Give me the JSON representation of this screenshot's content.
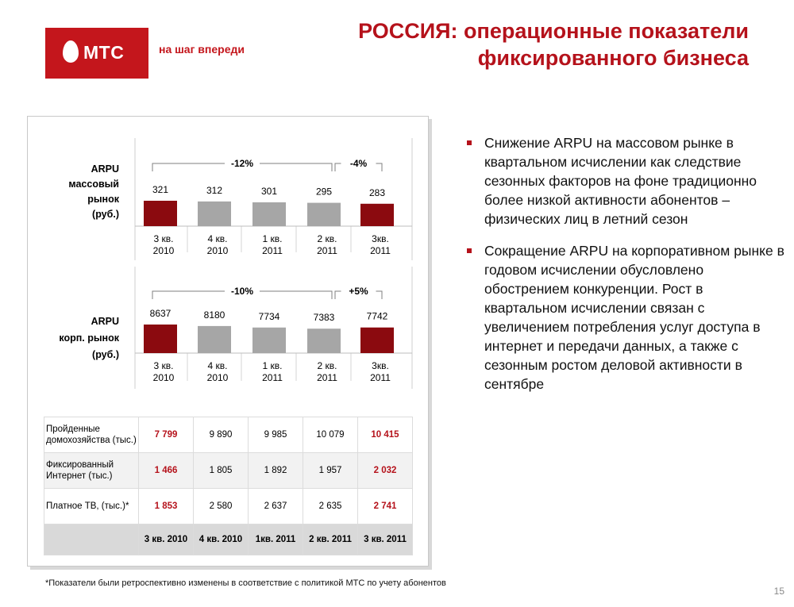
{
  "header": {
    "logo_text": "МТС",
    "tagline": "на шаг впереди",
    "title_line1": "РОССИЯ: операционные показатели",
    "title_line2": "фиксированного бизнеса"
  },
  "colors": {
    "brand": "#c4161c",
    "bar_dark": "#8b0a0f",
    "bar_gray": "#a6a6a6"
  },
  "chart_data": [
    {
      "type": "bar",
      "ylabel_lines": [
        "ARPU",
        "массовый",
        "рынок",
        "(руб.)"
      ],
      "categories": [
        [
          "3 кв.",
          "2010"
        ],
        [
          "4 кв.",
          "2010"
        ],
        [
          "1 кв.",
          "2011"
        ],
        [
          "2 кв.",
          "2011"
        ],
        [
          "3кв.",
          "2011"
        ]
      ],
      "values": [
        321,
        312,
        301,
        295,
        283
      ],
      "labels": [
        "321",
        "312",
        "301",
        "295",
        "283"
      ],
      "highlight": [
        0,
        4
      ],
      "annotations": [
        {
          "text": "-12%",
          "from": 0,
          "to": 3
        },
        {
          "text": "-4%",
          "from": 3,
          "to": 4
        }
      ]
    },
    {
      "type": "bar",
      "ylabel_lines": [
        "ARPU",
        "корп. рынок",
        "(руб.)"
      ],
      "categories": [
        [
          "3 кв.",
          "2010"
        ],
        [
          "4 кв.",
          "2010"
        ],
        [
          "1 кв.",
          "2011"
        ],
        [
          "2 кв.",
          "2011"
        ],
        [
          "3кв.",
          "2011"
        ]
      ],
      "values": [
        8637,
        8180,
        7734,
        7383,
        7742
      ],
      "labels": [
        "8637",
        "8180",
        "7734",
        "7383",
        "7742"
      ],
      "highlight": [
        0,
        4
      ],
      "annotations": [
        {
          "text": "-10%",
          "from": 0,
          "to": 3
        },
        {
          "text": "+5%",
          "from": 3,
          "to": 4
        }
      ]
    }
  ],
  "table": {
    "rows": [
      {
        "label": "Пройденные домохозяйства (тыс.)",
        "values": [
          "7 799",
          "9 890",
          "9 985",
          "10 079",
          "10 415"
        ]
      },
      {
        "label": "Фиксированный Интернет (тыс.)",
        "values": [
          "1 466",
          "1 805",
          "1 892",
          "1 957",
          "2 032"
        ]
      },
      {
        "label": "Платное ТВ, (тыс.)*",
        "values": [
          "1 853",
          "2 580",
          "2 637",
          "2 635",
          "2 741"
        ]
      }
    ],
    "header": [
      "3 кв. 2010",
      "4 кв. 2010",
      "1кв. 2011",
      "2 кв. 2011",
      "3 кв. 2011"
    ]
  },
  "bullets": [
    "Снижение ARPU на массовом рынке в квартальном исчислении как следствие сезонных факторов на фоне традиционно более низкой активности абонентов – физических лиц в летний сезон",
    "Сокращение ARPU на корпоративном рынке в годовом исчислении обусловлено обострением конкуренции. Рост в квартальном исчислении связан с увеличением потребления услуг доступа в интернет и передачи данных, а также с сезонным ростом деловой активности в сентябре"
  ],
  "footnote": "*Показатели были ретроспективно изменены в соответствие с политикой МТС по учету абонентов",
  "page_number": "15"
}
